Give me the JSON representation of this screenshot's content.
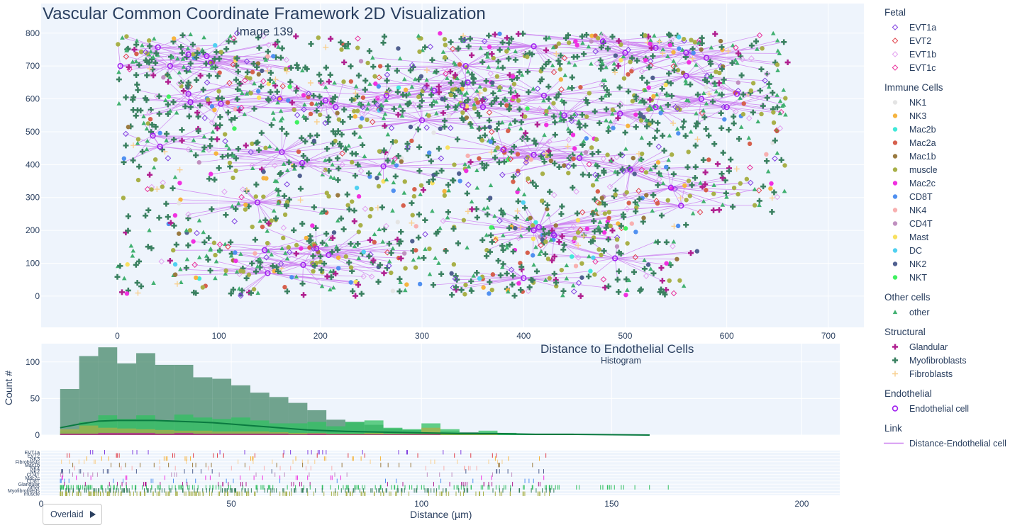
{
  "main_plot": {
    "title": "Vascular Common Coordinate Framework 2D Visualization",
    "subtitle": "Image 139",
    "x_ticks": [
      0,
      100,
      200,
      300,
      400,
      500,
      600,
      700
    ],
    "y_ticks": [
      0,
      100,
      200,
      300,
      400,
      500,
      600,
      700,
      800
    ],
    "xlim": [
      -75,
      735
    ],
    "ylim": [
      -95,
      890
    ]
  },
  "legend": [
    {
      "title": "Fetal",
      "items": [
        {
          "label": "EVT1a",
          "color": "#7f3fe0",
          "symbol": "diamond-open"
        },
        {
          "label": "EVT2",
          "color": "#e0404a",
          "symbol": "diamond-open"
        },
        {
          "label": "EVT1b",
          "color": "#e2a0f0",
          "symbol": "diamond-open"
        },
        {
          "label": "EVT1c",
          "color": "#e8309a",
          "symbol": "diamond-open"
        }
      ]
    },
    {
      "title": "Immune Cells",
      "items": [
        {
          "label": "NK1",
          "color": "#e4e4e4",
          "symbol": "circle"
        },
        {
          "label": "NK3",
          "color": "#f5b440",
          "symbol": "circle"
        },
        {
          "label": "Mac2b",
          "color": "#40e8d8",
          "symbol": "circle"
        },
        {
          "label": "Mac2a",
          "color": "#d6604d",
          "symbol": "circle"
        },
        {
          "label": "Mac1b",
          "color": "#9a7a40",
          "symbol": "circle"
        },
        {
          "label": "muscle",
          "color": "#a8b048",
          "symbol": "circle"
        },
        {
          "label": "Mac2c",
          "color": "#f030e0",
          "symbol": "circle"
        },
        {
          "label": "CD8T",
          "color": "#5090f0",
          "symbol": "circle"
        },
        {
          "label": "NK4",
          "color": "#f8b0b0",
          "symbol": "circle"
        },
        {
          "label": "CD4T",
          "color": "#c090c0",
          "symbol": "circle"
        },
        {
          "label": "Mast",
          "color": "#f8e060",
          "symbol": "circle"
        },
        {
          "label": "DC",
          "color": "#50d0f0",
          "symbol": "circle"
        },
        {
          "label": "NK2",
          "color": "#506090",
          "symbol": "circle"
        },
        {
          "label": "NKT",
          "color": "#40f060",
          "symbol": "circle"
        }
      ]
    },
    {
      "title": "Other cells",
      "items": [
        {
          "label": "other",
          "color": "#40b070",
          "symbol": "triangle"
        }
      ]
    },
    {
      "title": "Structural",
      "items": [
        {
          "label": "Glandular",
          "color": "#b02090",
          "symbol": "cross"
        },
        {
          "label": "Myofibroblasts",
          "color": "#3a8060",
          "symbol": "cross"
        },
        {
          "label": "Fibroblasts",
          "color": "#f8d090",
          "symbol": "cross-thin"
        }
      ]
    },
    {
      "title": "Endothelial",
      "items": [
        {
          "label": "Endothelial cell",
          "color": "#a020f0",
          "symbol": "circle-open"
        }
      ]
    },
    {
      "title": "Link",
      "items": [
        {
          "label": "Distance-Endothelial cell",
          "color": "#cc80f0",
          "symbol": "line"
        }
      ]
    }
  ],
  "chart_data": {
    "type": "bar",
    "title": "Distance to Endothelial Cells",
    "subtitle": "Histogram",
    "xlabel": "Distance (µm)",
    "ylabel": "Count #",
    "xlim": [
      0,
      210
    ],
    "ylim": [
      0,
      125
    ],
    "x_ticks": [
      0,
      50,
      100,
      150,
      200
    ],
    "y_ticks": [
      0,
      50,
      100
    ],
    "bin_width": 5,
    "series": [
      {
        "name": "Myofibroblasts",
        "color": "#3a8060",
        "bin_starts": [
          5,
          10,
          15,
          20,
          25,
          30,
          35,
          40,
          45,
          50,
          55,
          60,
          65,
          70,
          75,
          80,
          85,
          90,
          95,
          100,
          105,
          110,
          115,
          120,
          125,
          130,
          135,
          140,
          145,
          150,
          155
        ],
        "values": [
          63,
          108,
          120,
          98,
          112,
          96,
          96,
          79,
          77,
          68,
          58,
          52,
          44,
          34,
          21,
          18,
          14,
          9,
          7,
          4,
          5,
          4,
          3,
          2,
          2,
          2,
          2,
          1,
          1,
          1,
          1
        ]
      },
      {
        "name": "other",
        "color": "#30c060",
        "bin_starts": [
          5,
          10,
          15,
          20,
          25,
          30,
          35,
          40,
          45,
          50,
          55,
          60,
          65,
          70,
          75,
          80,
          85,
          90,
          95,
          100,
          105,
          110,
          115,
          120,
          125,
          130,
          135,
          140,
          145,
          150,
          155
        ],
        "values": [
          5,
          18,
          27,
          22,
          27,
          20,
          28,
          24,
          22,
          24,
          20,
          16,
          16,
          18,
          12,
          18,
          20,
          10,
          8,
          16,
          8,
          3,
          6,
          3,
          2,
          2,
          2,
          1,
          1,
          1,
          1
        ]
      },
      {
        "name": "muscle",
        "color": "#a8b048",
        "bin_starts": [
          5,
          10,
          15,
          20,
          25,
          30,
          35,
          40,
          45,
          50,
          55,
          60,
          65,
          70,
          75,
          80,
          85,
          90,
          95,
          100,
          105,
          110,
          115
        ],
        "values": [
          8,
          13,
          10,
          9,
          8,
          7,
          6,
          6,
          5,
          5,
          5,
          4,
          3,
          3,
          2,
          2,
          3,
          2,
          2,
          10,
          2,
          1,
          1
        ]
      },
      {
        "name": "Glandular",
        "color": "#b02090",
        "bin_starts": [
          5,
          10,
          15,
          20,
          25,
          30,
          35,
          40,
          45,
          50,
          55,
          60,
          65,
          70,
          75,
          80,
          85,
          90,
          95,
          100
        ],
        "values": [
          2,
          2,
          3,
          3,
          3,
          2,
          3,
          2,
          2,
          2,
          2,
          2,
          1,
          2,
          1,
          1,
          1,
          1,
          1,
          1
        ]
      }
    ],
    "density_curve": {
      "color": "#0a7a40",
      "x": [
        5,
        10,
        15,
        20,
        25,
        30,
        35,
        40,
        45,
        50,
        55,
        60,
        65,
        70,
        75,
        80,
        90,
        100,
        110,
        120,
        130,
        140,
        150,
        160
      ],
      "y": [
        10,
        15,
        19,
        20,
        20,
        20,
        19,
        18,
        17,
        15,
        13,
        11,
        9,
        7,
        6,
        5,
        4,
        3,
        2,
        2,
        1,
        1,
        0.5,
        0
      ]
    },
    "rug_rows": [
      "EVT1a",
      "EVT2",
      "NK3",
      "Fibroblasts",
      "Mac1b",
      "NK4",
      "NK2",
      "CD4T",
      "Mac2c",
      "CD8T",
      "Glandular",
      "other",
      "Myofibroblasts",
      "muscle"
    ]
  },
  "controls": {
    "overlay_button": "Overlaid"
  }
}
